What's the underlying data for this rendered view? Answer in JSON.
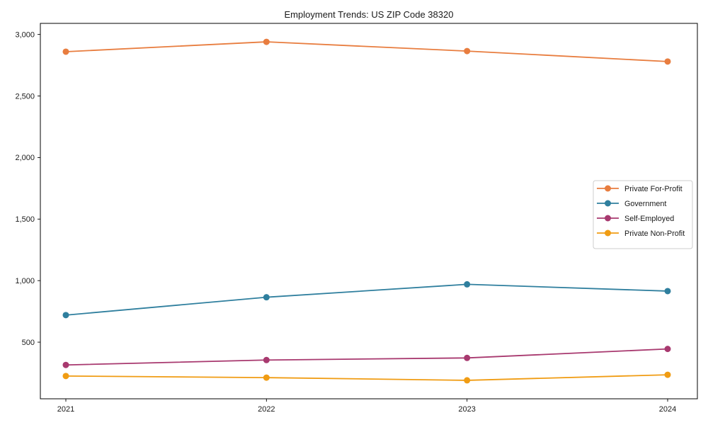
{
  "chart_data": {
    "type": "line",
    "title": "Employment Trends: US ZIP Code 38320",
    "x": [
      "2021",
      "2022",
      "2023",
      "2024"
    ],
    "series": [
      {
        "name": "Private For-Profit",
        "color": "#e87d3f",
        "values": [
          2860,
          2940,
          2865,
          2780
        ]
      },
      {
        "name": "Government",
        "color": "#2f7f9e",
        "values": [
          720,
          865,
          970,
          915
        ]
      },
      {
        "name": "Self-Employed",
        "color": "#a8396f",
        "values": [
          315,
          355,
          372,
          445
        ]
      },
      {
        "name": "Private Non-Profit",
        "color": "#f09c13",
        "values": [
          225,
          212,
          190,
          235
        ]
      }
    ],
    "ylim": [
      40,
      3090
    ],
    "yticks": [
      500,
      1000,
      1500,
      2000,
      2500,
      3000
    ],
    "ytick_labels": [
      "500",
      "1,000",
      "1,500",
      "2,000",
      "2,500",
      "3,000"
    ],
    "xlabel": "",
    "ylabel": "",
    "grid": false,
    "legend_position": "center right",
    "frame_color": "#000000",
    "background_color": "#ffffff"
  }
}
